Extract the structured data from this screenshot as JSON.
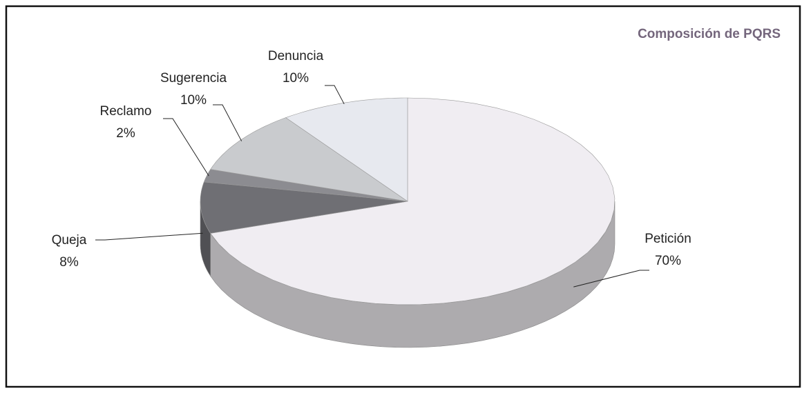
{
  "chart_data": {
    "type": "pie",
    "title": "Composición de PQRS",
    "categories": [
      "Petición",
      "Queja",
      "Reclamo",
      "Sugerencia",
      "Denuncia"
    ],
    "values": [
      70,
      8,
      2,
      10,
      10
    ],
    "value_labels": [
      "70%",
      "8%",
      "2%",
      "10%",
      "10%"
    ],
    "colors": [
      "#f0edf2",
      "#6f6f74",
      "#8c8c91",
      "#c9cbce",
      "#e7e9ef"
    ]
  }
}
